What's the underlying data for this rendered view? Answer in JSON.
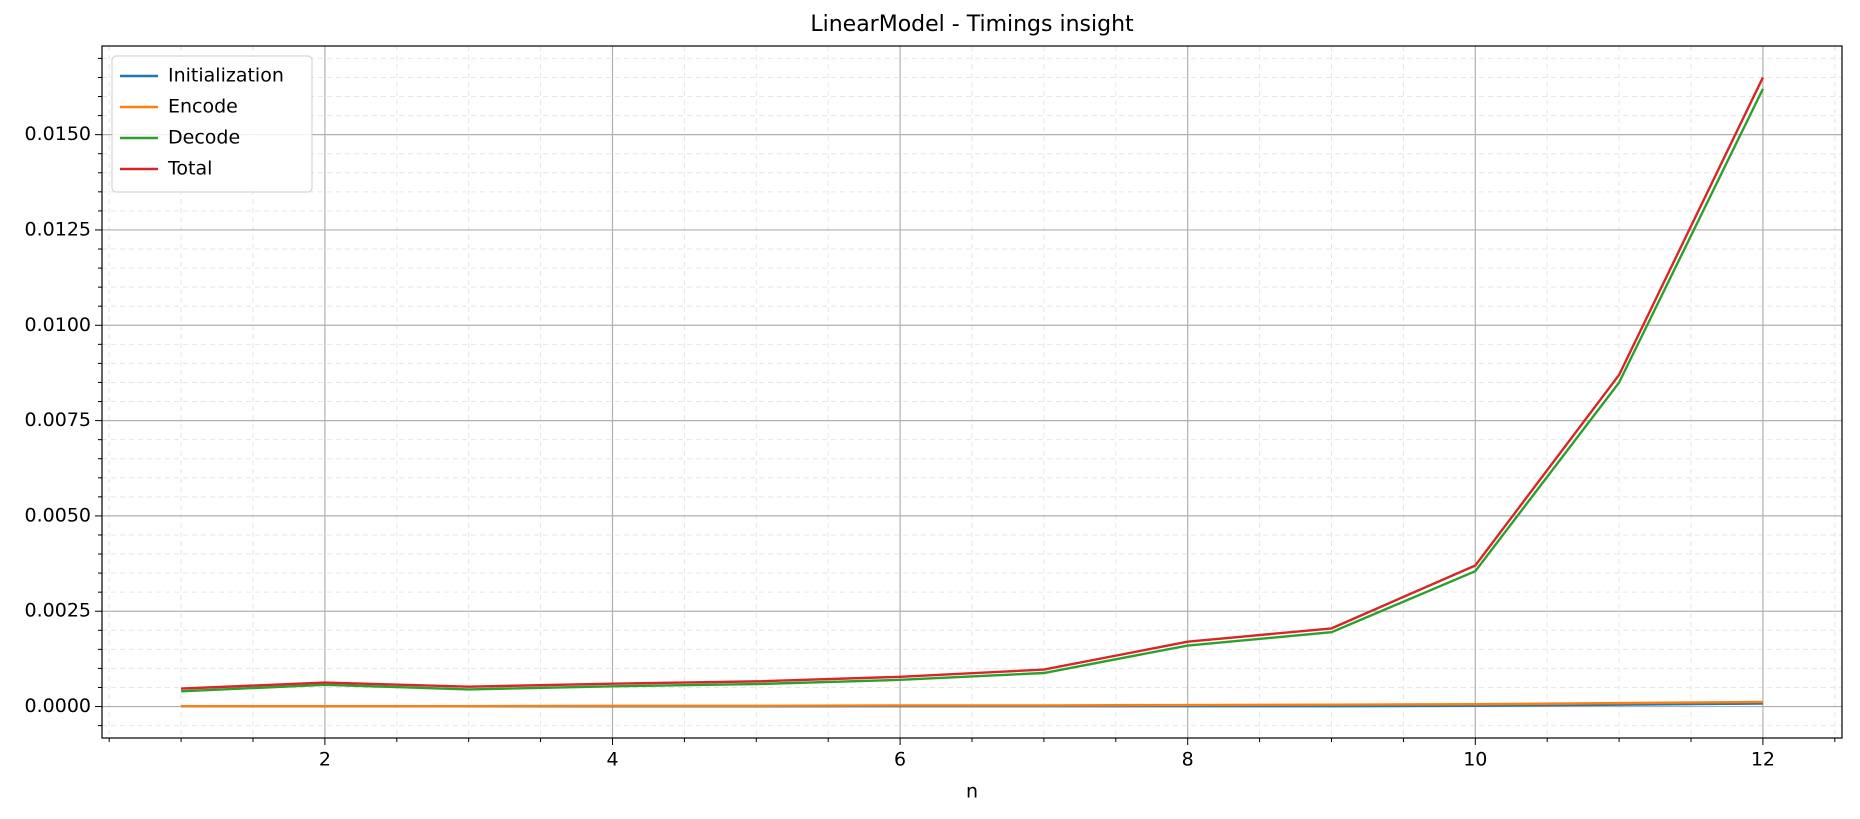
{
  "chart_data": {
    "type": "line",
    "title": "LinearModel - Timings insight",
    "xlabel": "n",
    "x": [
      1,
      2,
      3,
      4,
      5,
      6,
      7,
      8,
      9,
      10,
      11,
      12
    ],
    "series": [
      {
        "name": "Initialization",
        "color": "#1f77b4",
        "values": [
          5e-06,
          5e-06,
          5e-06,
          5e-06,
          5e-06,
          1e-05,
          1e-05,
          1e-05,
          1e-05,
          2e-05,
          5e-05,
          8e-05
        ]
      },
      {
        "name": "Encode",
        "color": "#ff7f0e",
        "values": [
          1e-05,
          1e-05,
          1e-05,
          2e-05,
          2e-05,
          3e-05,
          3e-05,
          4e-05,
          5e-05,
          6e-05,
          9e-05,
          0.00012
        ]
      },
      {
        "name": "Decode",
        "color": "#2ca02c",
        "values": [
          0.0004,
          0.00057,
          0.00045,
          0.00053,
          0.00059,
          0.0007,
          0.00088,
          0.0016,
          0.00195,
          0.00355,
          0.0085,
          0.0162
        ]
      },
      {
        "name": "Total",
        "color": "#d62728",
        "values": [
          0.00047,
          0.00063,
          0.00052,
          0.0006,
          0.00066,
          0.00078,
          0.00097,
          0.0017,
          0.00205,
          0.0037,
          0.0087,
          0.0165
        ]
      }
    ],
    "xlim": [
      0.45,
      12.55
    ],
    "ylim": [
      -0.000825,
      0.017325
    ],
    "xticks": [
      2,
      4,
      6,
      8,
      10,
      12
    ],
    "yticks": [
      {
        "value": 0,
        "label": "0.0000"
      },
      {
        "value": 0.0025,
        "label": "0.0025"
      },
      {
        "value": 0.005,
        "label": "0.0050"
      },
      {
        "value": 0.0075,
        "label": "0.0075"
      },
      {
        "value": 0.01,
        "label": "0.0100"
      },
      {
        "value": 0.0125,
        "label": "0.0125"
      },
      {
        "value": 0.015,
        "label": "0.0150"
      }
    ],
    "xminorticks": [
      0.5,
      1,
      1.5,
      2.5,
      3,
      3.5,
      4.5,
      5,
      5.5,
      6.5,
      7,
      7.5,
      8.5,
      9,
      9.5,
      10.5,
      11,
      11.5,
      12.5
    ],
    "yminorticks": [
      -0.0005,
      0.0005,
      0.001,
      0.0015,
      0.002,
      0.003,
      0.0035,
      0.004,
      0.0045,
      0.0055,
      0.006,
      0.0065,
      0.007,
      0.008,
      0.0085,
      0.009,
      0.0095,
      0.0105,
      0.011,
      0.0115,
      0.012,
      0.013,
      0.0135,
      0.014,
      0.0145,
      0.0155,
      0.016,
      0.0165,
      0.017
    ],
    "grid": true,
    "minor_grid": true,
    "legend": "upper left"
  }
}
